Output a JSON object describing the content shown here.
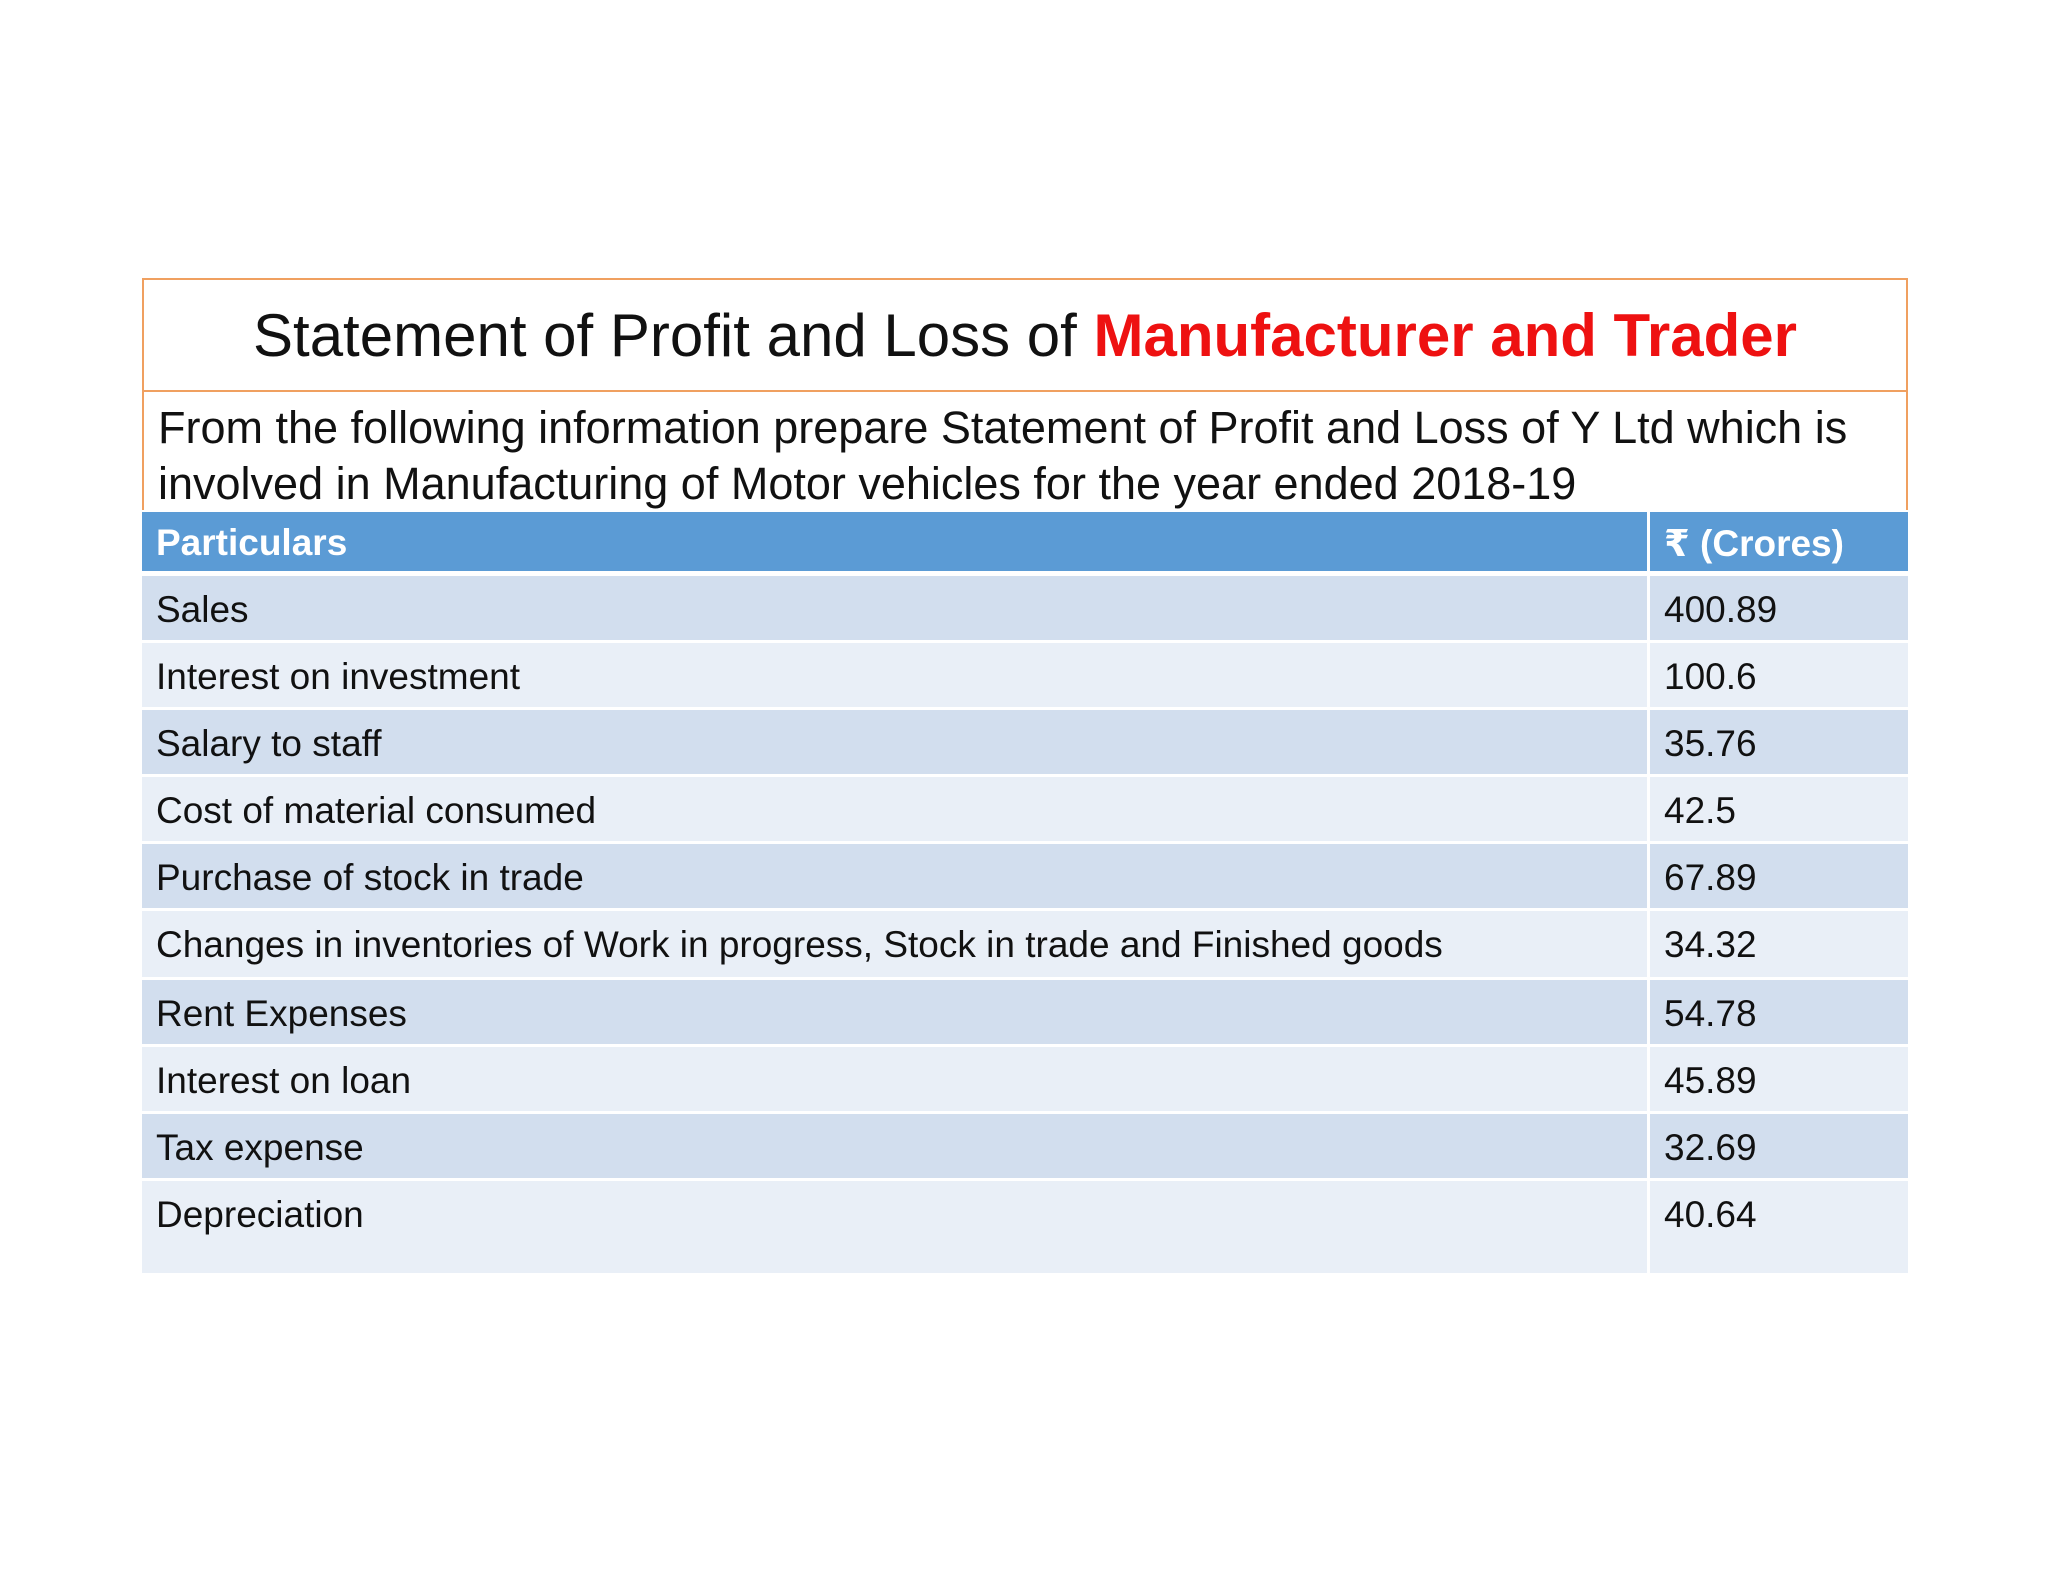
{
  "title": {
    "prefix": "Statement of Profit and Loss of ",
    "highlight": "Manufacturer and Trader"
  },
  "description": "From the following information prepare Statement of Profit and Loss of Y Ltd which is involved in Manufacturing of Motor vehicles for the year ended 2018-19",
  "table": {
    "headers": [
      "Particulars",
      "₹ (Crores)"
    ],
    "rows": [
      {
        "particular": "Sales",
        "amount": "400.89"
      },
      {
        "particular": "Interest on investment",
        "amount": "100.6"
      },
      {
        "particular": "Salary to staff",
        "amount": "35.76"
      },
      {
        "particular": "Cost of material consumed",
        "amount": "42.5"
      },
      {
        "particular": "Purchase of stock in trade",
        "amount": "67.89"
      },
      {
        "particular": "Changes in inventories of Work in progress, Stock in trade and Finished goods",
        "amount": "34.32"
      },
      {
        "particular": "Rent Expenses",
        "amount": "54.78"
      },
      {
        "particular": "Interest on loan",
        "amount": "45.89"
      },
      {
        "particular": "Tax expense",
        "amount": "32.69"
      },
      {
        "particular": "Depreciation",
        "amount": "40.64"
      }
    ]
  },
  "colors": {
    "accent": "#ee1111",
    "border": "#f0a060",
    "header_bg": "#5b9bd5",
    "row_odd": "#d2deee",
    "row_even": "#e9eff7"
  }
}
